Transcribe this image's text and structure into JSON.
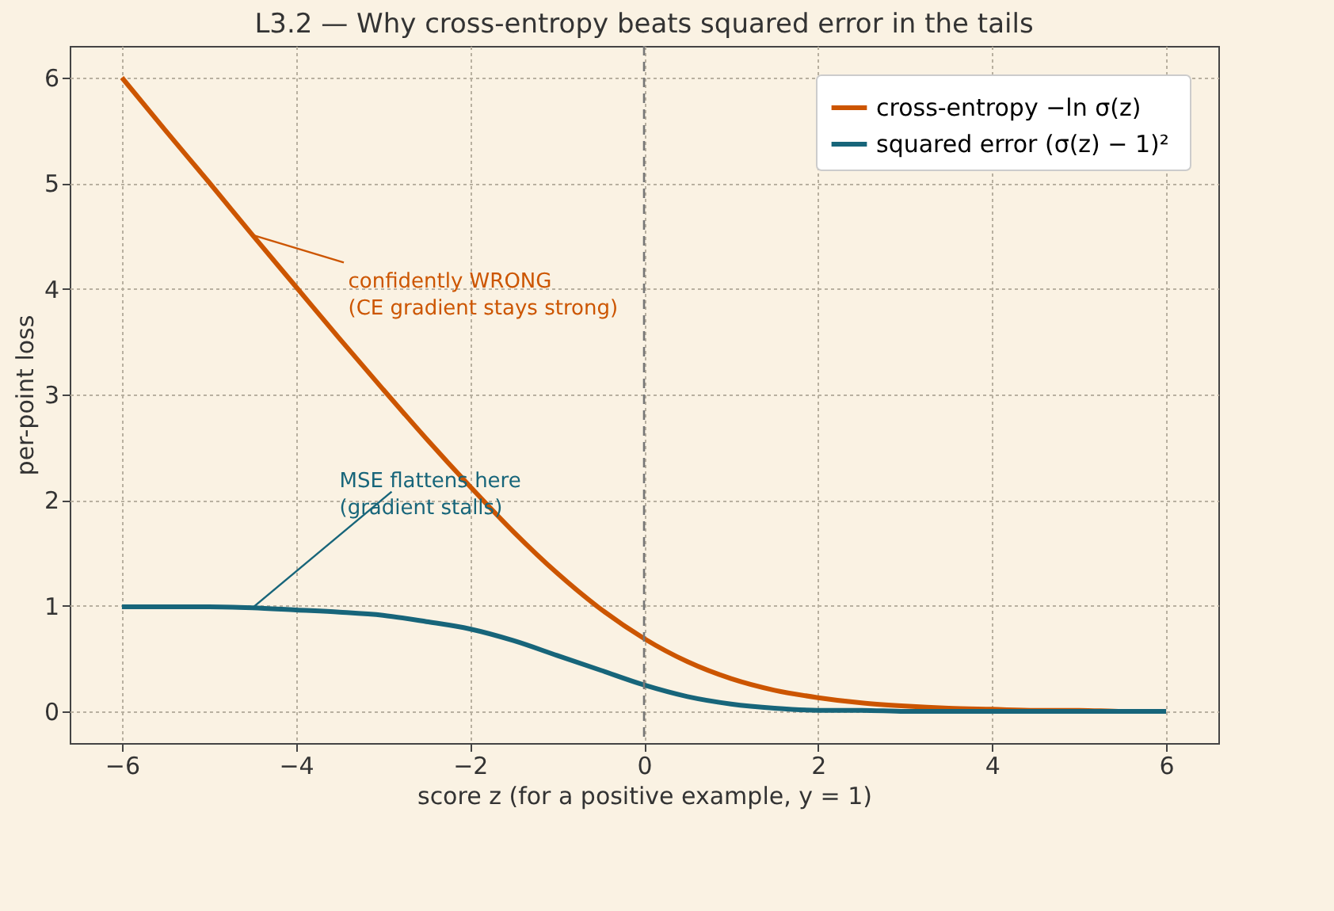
{
  "chart_data": {
    "type": "line",
    "title": "L3.2 — Why cross-entropy beats squared error in the tails",
    "xlabel": "score z (for a positive example, y = 1)",
    "ylabel": "per-point loss",
    "x": [
      -6,
      -5.5,
      -5,
      -4.5,
      -4,
      -3.5,
      -3,
      -2.5,
      -2,
      -1.5,
      -1,
      -0.5,
      0,
      0.5,
      1,
      1.5,
      2,
      2.5,
      3,
      3.5,
      4,
      4.5,
      5,
      5.5,
      6
    ],
    "series": [
      {
        "name": "cross-entropy  −ln σ(z)",
        "color": "#cc5500",
        "values": [
          6.0,
          5.5,
          5.01,
          4.51,
          4.02,
          3.53,
          3.05,
          2.58,
          2.13,
          1.7,
          1.31,
          0.97,
          0.69,
          0.47,
          0.31,
          0.2,
          0.13,
          0.08,
          0.05,
          0.03,
          0.02,
          0.01,
          0.01,
          0,
          0
        ]
      },
      {
        "name": "squared error  (σ(z) − 1)²",
        "color": "#17657a",
        "values": [
          0.99,
          0.99,
          0.99,
          0.98,
          0.96,
          0.94,
          0.91,
          0.85,
          0.78,
          0.67,
          0.53,
          0.39,
          0.25,
          0.14,
          0.07,
          0.03,
          0.01,
          0.01,
          0,
          0,
          0,
          0,
          0,
          0,
          0
        ]
      }
    ],
    "annotations": [
      {
        "text": "confidently WRONG\n(CE gradient stays strong)",
        "x": -4.5,
        "y": 4.51
      },
      {
        "text": "MSE flattens here\n(gradient stalls)",
        "x": -4.5,
        "y": 0.98
      }
    ],
    "ref_lines": [
      {
        "axis": "x",
        "value": 0,
        "color": "#777777",
        "line_style": "dashed"
      }
    ],
    "xlim": [
      -6.6,
      6.6
    ],
    "xticks": [
      -6,
      -4,
      -2,
      0,
      2,
      4,
      6
    ],
    "ylim": [
      -0.3,
      6.3
    ],
    "yticks": [
      0,
      1,
      2,
      3,
      4,
      5,
      6
    ],
    "grid": true,
    "legend": "top right",
    "line_style": "solid",
    "marker": "none"
  }
}
